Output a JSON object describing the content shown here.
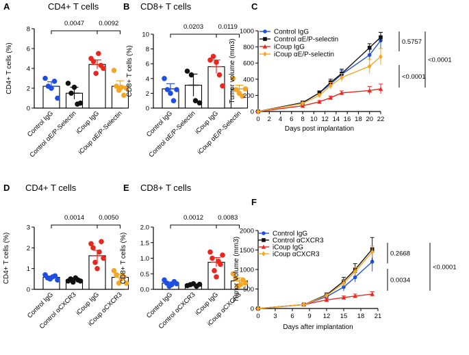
{
  "chart_data": [
    {
      "panel": "A",
      "type": "bar",
      "title": "CD4+ T cells",
      "ylabel": "CD4+ T cells (%)",
      "ylim": [
        0,
        8
      ],
      "yticks": [
        0,
        2,
        4,
        6,
        8
      ],
      "categories": [
        "Control IgG",
        "Control αE/P-Selectin",
        "iCoup IgG",
        "iCoup αE/P-Selectin"
      ],
      "colors": [
        "#1f4fe0",
        "#111111",
        "#e8281e",
        "#f5a623"
      ],
      "means": [
        2.2,
        1.5,
        4.4,
        2.2
      ],
      "sem": [
        0.45,
        0.6,
        0.45,
        0.55
      ],
      "points": [
        [
          3.0,
          2.2,
          2.0,
          2.7,
          1.0
        ],
        [
          2.5,
          1.5,
          2.1,
          0.4,
          0.5
        ],
        [
          5.0,
          4.7,
          3.5,
          5.5,
          4.3,
          4.0
        ],
        [
          3.8,
          2.2,
          1.8,
          2.1,
          1.3,
          2.0
        ]
      ],
      "comparisons": [
        {
          "from": 0,
          "to": 2,
          "label": "0.0047"
        },
        {
          "from": 2,
          "to": 3,
          "label": "0.0092"
        }
      ]
    },
    {
      "panel": "B",
      "type": "bar",
      "title": "CD8+ T cells",
      "ylabel": "CD8+ T cells (%)",
      "ylim": [
        0,
        10
      ],
      "yticks": [
        0,
        2,
        4,
        6,
        8,
        10
      ],
      "categories": [
        "Control IgG",
        "Control αE/P-Selectin",
        "iCoup IgG",
        "iCoup αE/P-Selectin"
      ],
      "colors": [
        "#1f4fe0",
        "#111111",
        "#e8281e",
        "#f5a623"
      ],
      "means": [
        2.6,
        3.1,
        5.6,
        2.6
      ],
      "sem": [
        0.7,
        1.5,
        0.9,
        0.5
      ],
      "points": [
        [
          4.0,
          2.5,
          2.0,
          1.0,
          2.5
        ],
        [
          5.0,
          4.5,
          1.0,
          0.7
        ],
        [
          6.5,
          7.0,
          6.2,
          4.5,
          3.0
        ],
        [
          4.0,
          2.5,
          2.0,
          1.6,
          2.6
        ]
      ],
      "comparisons": [
        {
          "from": 0,
          "to": 2,
          "label": "0.0203"
        },
        {
          "from": 2,
          "to": 3,
          "label": "0.0119"
        }
      ]
    },
    {
      "panel": "C",
      "type": "line",
      "xlabel": "Days post implantation",
      "ylabel": "Tumor volume (mm3)",
      "xlim": [
        0,
        22
      ],
      "ylim": [
        0,
        1000
      ],
      "xticks": [
        0,
        2,
        4,
        6,
        8,
        10,
        12,
        14,
        16,
        18,
        20,
        22
      ],
      "yticks": [
        0,
        200,
        400,
        600,
        800,
        1000
      ],
      "x": [
        0,
        8,
        11,
        13,
        15,
        20,
        22
      ],
      "series": [
        {
          "name": "Control IgG",
          "color": "#1f4fe0",
          "marker": "circle",
          "values": [
            0,
            110,
            230,
            340,
            460,
            700,
            880
          ],
          "err": [
            0,
            15,
            25,
            40,
            50,
            70,
            100
          ]
        },
        {
          "name": "Control αE/P-selectin",
          "color": "#111111",
          "marker": "square",
          "values": [
            0,
            110,
            230,
            360,
            470,
            790,
            920
          ],
          "err": [
            0,
            15,
            25,
            40,
            55,
            50,
            60
          ]
        },
        {
          "name": "iCoup IgG",
          "color": "#e8281e",
          "marker": "triangle",
          "values": [
            0,
            70,
            120,
            170,
            230,
            260,
            280
          ],
          "err": [
            0,
            10,
            15,
            20,
            25,
            50,
            60
          ]
        },
        {
          "name": "iCoup αE/P-selectin",
          "color": "#f5a623",
          "marker": "diamond",
          "values": [
            0,
            100,
            200,
            320,
            420,
            560,
            680
          ],
          "err": [
            0,
            15,
            20,
            40,
            50,
            90,
            100
          ]
        }
      ],
      "comparisons": [
        "0.5757",
        "<0.0001",
        "<0.0001"
      ]
    },
    {
      "panel": "D",
      "type": "bar",
      "title": "CD4+  T cells",
      "ylabel": "CD4+ T cells (%)",
      "ylim": [
        0,
        3
      ],
      "yticks": [
        0,
        1,
        2,
        3
      ],
      "categories": [
        "Control IgG",
        "Control αCXCR3",
        "iCoup IgG",
        "iCoup αCXCR3"
      ],
      "colors": [
        "#1f4fe0",
        "#111111",
        "#e8281e",
        "#f5a623"
      ],
      "means": [
        0.58,
        0.45,
        1.62,
        0.58
      ],
      "sem": [
        0.06,
        0.06,
        0.26,
        0.16
      ],
      "points": [
        [
          0.7,
          0.55,
          0.5,
          0.6,
          0.65,
          0.45
        ],
        [
          0.4,
          0.5,
          0.35,
          0.55,
          0.45,
          0.4
        ],
        [
          2.2,
          2.0,
          1.3,
          1.0,
          1.8,
          2.3,
          1.5
        ],
        [
          0.9,
          0.7,
          0.3,
          0.5,
          0.6,
          0.3
        ]
      ],
      "comparisons": [
        {
          "from": 0,
          "to": 2,
          "label": "0.0014"
        },
        {
          "from": 2,
          "to": 3,
          "label": "0.0050"
        }
      ]
    },
    {
      "panel": "E",
      "type": "bar",
      "title": "CD8+ T cells",
      "ylabel": "CD8+ T cells (%)",
      "ylim": [
        0,
        2.0
      ],
      "yticks": [
        0.0,
        0.5,
        1.0,
        1.5,
        2.0
      ],
      "categories": [
        "Control IgG",
        "Control αCXCR3",
        "iCoup IgG",
        "iCoup αCXCR3"
      ],
      "colors": [
        "#1f4fe0",
        "#111111",
        "#e8281e",
        "#f5a623"
      ],
      "means": [
        0.2,
        0.15,
        0.87,
        0.27
      ],
      "sem": [
        0.04,
        0.02,
        0.15,
        0.1
      ],
      "points": [
        [
          0.3,
          0.2,
          0.1,
          0.15,
          0.25,
          0.18
        ],
        [
          0.12,
          0.15,
          0.18,
          0.1,
          0.16
        ],
        [
          1.2,
          1.0,
          0.6,
          0.4,
          0.9,
          0.8,
          1.1
        ],
        [
          0.5,
          0.35,
          0.1,
          0.15,
          0.3,
          0.2
        ]
      ],
      "comparisons": [
        {
          "from": 0,
          "to": 2,
          "label": "0.0012"
        },
        {
          "from": 2,
          "to": 3,
          "label": "0.0083"
        }
      ]
    },
    {
      "panel": "F",
      "type": "line",
      "xlabel": "Days after implantation",
      "ylabel": "Tumor Volume (mm3)",
      "xlim": [
        0,
        21
      ],
      "ylim": [
        0,
        2000
      ],
      "xticks": [
        0,
        3,
        6,
        9,
        12,
        15,
        18,
        21
      ],
      "yticks": [
        0,
        500,
        1000,
        1500,
        2000
      ],
      "x": [
        0,
        8,
        12,
        15,
        17,
        20
      ],
      "series": [
        {
          "name": "Control IgG",
          "color": "#1f4fe0",
          "marker": "circle",
          "values": [
            0,
            100,
            300,
            550,
            800,
            1200
          ],
          "err": [
            0,
            20,
            50,
            100,
            120,
            250
          ]
        },
        {
          "name": "Control αCXCR3",
          "color": "#111111",
          "marker": "square",
          "values": [
            0,
            100,
            350,
            700,
            1000,
            1520
          ],
          "err": [
            0,
            20,
            50,
            100,
            150,
            300
          ]
        },
        {
          "name": "iCoup IgG",
          "color": "#e8281e",
          "marker": "triangle",
          "values": [
            0,
            100,
            220,
            280,
            320,
            370
          ],
          "err": [
            0,
            15,
            30,
            40,
            50,
            60
          ]
        },
        {
          "name": "iCoup αCXCR3",
          "color": "#f5a623",
          "marker": "diamond",
          "values": [
            0,
            100,
            330,
            650,
            950,
            1450
          ],
          "err": [
            0,
            20,
            50,
            80,
            100,
            150
          ]
        }
      ],
      "comparisons": [
        "0.2668",
        "0.0034",
        "<0.0001"
      ]
    }
  ]
}
